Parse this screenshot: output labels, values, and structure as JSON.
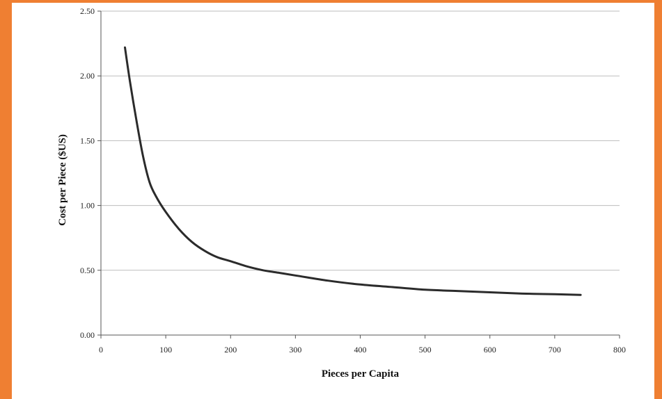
{
  "frame": {
    "accent_color": "#ef7f32"
  },
  "chart_data": {
    "type": "line",
    "title": "",
    "xlabel": "Pieces per Capita",
    "ylabel": "Cost per Piece ($US)",
    "xlim": [
      0,
      800
    ],
    "ylim": [
      0,
      2.5
    ],
    "x_ticks": [
      "0",
      "100",
      "200",
      "300",
      "400",
      "500",
      "600",
      "700",
      "800"
    ],
    "y_ticks": [
      "0.00",
      "0.50",
      "1.00",
      "1.50",
      "2.00",
      "2.50"
    ],
    "grid": {
      "horizontal": true,
      "vertical": false
    },
    "line_color": "#2b2b2b",
    "series": [
      {
        "x": [
          37,
          45,
          55,
          65,
          75,
          85,
          100,
          120,
          140,
          160,
          180,
          200,
          225,
          250,
          275,
          300,
          350,
          400,
          450,
          500,
          550,
          600,
          650,
          700,
          740
        ],
        "y": [
          2.22,
          1.95,
          1.65,
          1.38,
          1.18,
          1.07,
          0.95,
          0.82,
          0.72,
          0.65,
          0.6,
          0.57,
          0.53,
          0.5,
          0.48,
          0.46,
          0.42,
          0.39,
          0.37,
          0.35,
          0.34,
          0.33,
          0.32,
          0.315,
          0.31
        ]
      }
    ]
  }
}
